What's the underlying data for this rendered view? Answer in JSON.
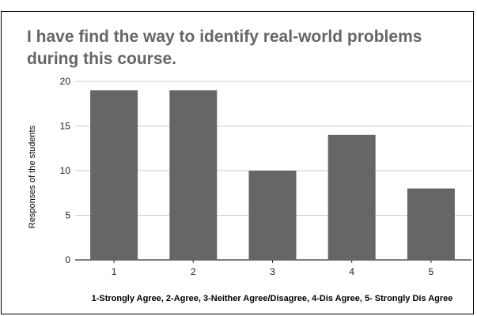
{
  "chart_data": {
    "type": "bar",
    "title": "I have find the way to identify real-world problems during this course.",
    "categories": [
      "1",
      "2",
      "3",
      "4",
      "5"
    ],
    "values": [
      19,
      19,
      10,
      14,
      8
    ],
    "xlabel": "1-Strongly Agree, 2-Agree, 3-Neither Agree/Disagree, 4-Dis Agree, 5- Strongly Dis Agree",
    "ylabel": "Responses of the students",
    "ylim": [
      0,
      20
    ],
    "yticks": [
      0,
      5,
      10,
      15,
      20
    ],
    "grid": true,
    "legend": "none",
    "colors": {
      "bar": "#666666",
      "grid": "#cccccc",
      "title": "#666666"
    }
  }
}
